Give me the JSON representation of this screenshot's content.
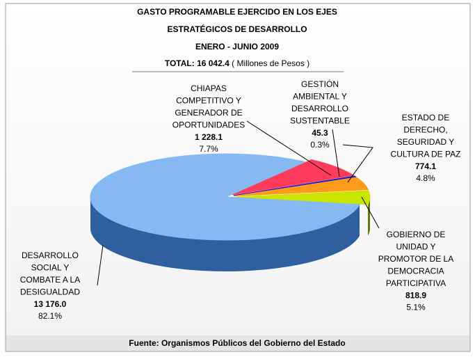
{
  "chart_data": {
    "type": "pie3d",
    "title": "GASTO PROGRAMABLE EJERCIDO EN LOS EJES\nESTRATÉGICOS DE DESARROLLO",
    "subtitle": "ENERO - JUNIO 2009",
    "total_caption": "TOTAL:",
    "total": 16042.4,
    "total_label": "16 042.4",
    "units": "( Millones de Pesos )",
    "categories": [
      "GOBIERNO DE\nUNIDAD Y\nPROMOTOR DE LA\nDEMOCRACIA\nPARTICIPATIVA",
      "ESTADO DE\nDERECHO,\nSEGURIDAD Y\nCULTURA DE PAZ",
      "GESTIÓN\nAMBIENTAL Y\nDESARROLLO\nSUSTENTABLE",
      "CHIAPAS\nCOMPETITIVO Y\nGENERADOR DE\nOPORTUNIDADES",
      "DESARROLLO\nSOCIAL Y\nCOMBATE A LA\nDESIGUALDAD"
    ],
    "values": [
      818.9,
      774.1,
      45.3,
      1228.1,
      13176.0
    ],
    "value_labels": [
      "818.9",
      "774.1",
      "45.3",
      "1 228.1",
      "13 176.0"
    ],
    "percents": [
      5.1,
      4.8,
      0.3,
      7.7,
      82.1
    ],
    "percent_labels": [
      "5.1%",
      "4.8%",
      "0.3%",
      "7.7%",
      "82.1%"
    ],
    "colors": [
      "#c8e600",
      "#ff9a1a",
      "#1a1acc",
      "#ff3b5c",
      "#86b8f2"
    ],
    "side_colors": [
      "#5e7a00",
      "#b86200",
      "#0a0a80",
      "#a01830",
      "#2e5f9e"
    ],
    "source": "Fuente: Organismos Públicos del Gobierno del Estado"
  }
}
